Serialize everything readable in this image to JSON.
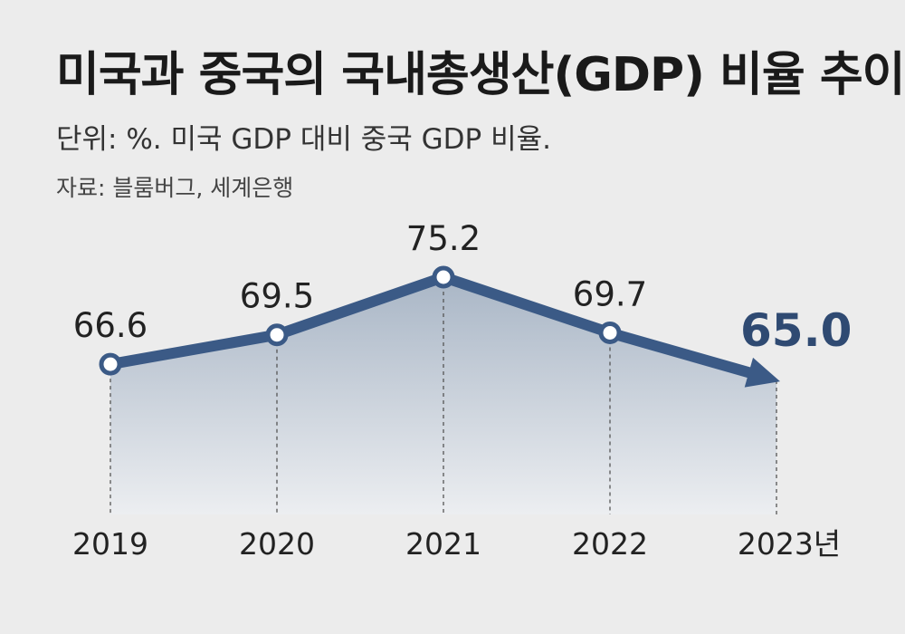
{
  "header": {
    "title": "미국과 중국의 국내총생산(GDP) 비율 추이",
    "subtitle": "단위: %. 미국 GDP 대비 중국 GDP 비율.",
    "source": "자료: 블룸버그, 세계은행"
  },
  "colors": {
    "line": "#3b5a86",
    "highlight": "#2f4a72",
    "area_top": "#a9b6c6",
    "area_bottom": "#eceef1",
    "background": "#ececec"
  },
  "chart_data": {
    "type": "line",
    "title": "미국과 중국의 국내총생산(GDP) 비율 추이",
    "subtitle": "단위: %. 미국 GDP 대비 중국 GDP 비율.",
    "categories": [
      "2019",
      "2020",
      "2021",
      "2022",
      "2023년"
    ],
    "values": [
      66.6,
      69.5,
      75.2,
      69.7,
      65.0
    ],
    "value_labels": [
      "66.6",
      "69.5",
      "75.2",
      "69.7",
      "65.0"
    ],
    "ylim": [
      50,
      80
    ],
    "grid": false,
    "legend": "none",
    "area_fill": true,
    "last_point_marker": "arrow",
    "highlight_last": true
  }
}
